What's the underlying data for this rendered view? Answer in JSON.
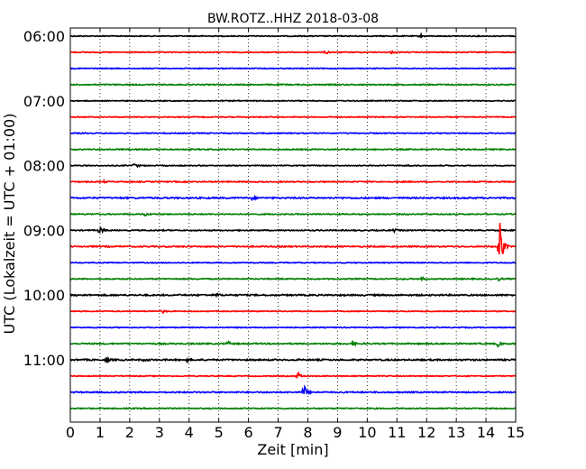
{
  "chart_data": {
    "type": "line",
    "title": "BW.ROTZ..HHZ 2018-03-08",
    "xlabel": "Zeit  [min]",
    "ylabel": "UTC (Lokalzeit = UTC + 01:00)",
    "xlim": [
      0,
      15
    ],
    "x_ticks": [
      "0",
      "1",
      "2",
      "3",
      "4",
      "5",
      "6",
      "7",
      "8",
      "9",
      "10",
      "11",
      "12",
      "13",
      "14",
      "15"
    ],
    "y_tick_labels": [
      "06:00",
      "07:00",
      "08:00",
      "09:00",
      "10:00",
      "11:00"
    ],
    "grid": "vertical-dotted",
    "trace_colors": [
      "#000000",
      "#ff0000",
      "#0000ff",
      "#008000"
    ],
    "traces": [
      {
        "start": "06:00",
        "color": "#000000",
        "noise": 0.5,
        "events": [
          {
            "t": 11.8,
            "amp": 2
          }
        ]
      },
      {
        "start": "06:15",
        "color": "#ff0000",
        "noise": 0.5,
        "events": [
          {
            "t": 8.6,
            "amp": 2.5
          },
          {
            "t": 10.8,
            "amp": 1.5
          }
        ]
      },
      {
        "start": "06:30",
        "color": "#0000ff",
        "noise": 0.5,
        "events": []
      },
      {
        "start": "06:45",
        "color": "#008000",
        "noise": 0.6,
        "events": []
      },
      {
        "start": "07:00",
        "color": "#000000",
        "noise": 0.5,
        "events": []
      },
      {
        "start": "07:15",
        "color": "#ff0000",
        "noise": 0.5,
        "events": []
      },
      {
        "start": "07:30",
        "color": "#0000ff",
        "noise": 0.5,
        "events": []
      },
      {
        "start": "07:45",
        "color": "#008000",
        "noise": 0.6,
        "events": []
      },
      {
        "start": "08:00",
        "color": "#000000",
        "noise": 0.5,
        "events": [
          {
            "t": 2.15,
            "amp": 5
          },
          {
            "t": 11.3,
            "amp": 1.5
          }
        ]
      },
      {
        "start": "08:15",
        "color": "#ff0000",
        "noise": 0.6,
        "events": [
          {
            "t": 1.1,
            "amp": 1.5
          }
        ]
      },
      {
        "start": "08:30",
        "color": "#0000ff",
        "noise": 0.8,
        "events": [
          {
            "t": 6.1,
            "amp": 2
          }
        ]
      },
      {
        "start": "08:45",
        "color": "#008000",
        "noise": 0.6,
        "events": [
          {
            "t": 2.5,
            "amp": 2
          }
        ]
      },
      {
        "start": "09:00",
        "color": "#000000",
        "noise": 0.6,
        "events": [
          {
            "t": 1.0,
            "amp": 6
          },
          {
            "t": 10.9,
            "amp": 2
          }
        ]
      },
      {
        "start": "09:15",
        "color": "#ff0000",
        "noise": 0.7,
        "events": [
          {
            "t": 14.45,
            "amp": 46
          }
        ]
      },
      {
        "start": "09:30",
        "color": "#0000ff",
        "noise": 0.5,
        "events": []
      },
      {
        "start": "09:45",
        "color": "#008000",
        "noise": 0.6,
        "events": [
          {
            "t": 11.8,
            "amp": 3
          },
          {
            "t": 14.4,
            "amp": 2
          }
        ]
      },
      {
        "start": "10:00",
        "color": "#000000",
        "noise": 0.8,
        "events": [
          {
            "t": 4.9,
            "amp": 2.5
          }
        ]
      },
      {
        "start": "10:15",
        "color": "#ff0000",
        "noise": 0.5,
        "events": [
          {
            "t": 3.1,
            "amp": 2
          }
        ]
      },
      {
        "start": "10:30",
        "color": "#0000ff",
        "noise": 0.5,
        "events": []
      },
      {
        "start": "10:45",
        "color": "#008000",
        "noise": 0.7,
        "events": [
          {
            "t": 5.3,
            "amp": 2.5
          },
          {
            "t": 9.5,
            "amp": 3
          },
          {
            "t": 14.4,
            "amp": 2.5
          }
        ]
      },
      {
        "start": "11:00",
        "color": "#000000",
        "noise": 0.8,
        "events": [
          {
            "t": 1.2,
            "amp": 3
          },
          {
            "t": 2.5,
            "amp": 2
          },
          {
            "t": 3.9,
            "amp": 1.8
          }
        ]
      },
      {
        "start": "11:15",
        "color": "#ff0000",
        "noise": 0.5,
        "events": [
          {
            "t": 7.65,
            "amp": 5
          }
        ]
      },
      {
        "start": "11:30",
        "color": "#0000ff",
        "noise": 0.7,
        "events": [
          {
            "t": 7.85,
            "amp": 11
          }
        ]
      },
      {
        "start": "11:45",
        "color": "#008000",
        "noise": 0.6,
        "events": []
      }
    ]
  }
}
